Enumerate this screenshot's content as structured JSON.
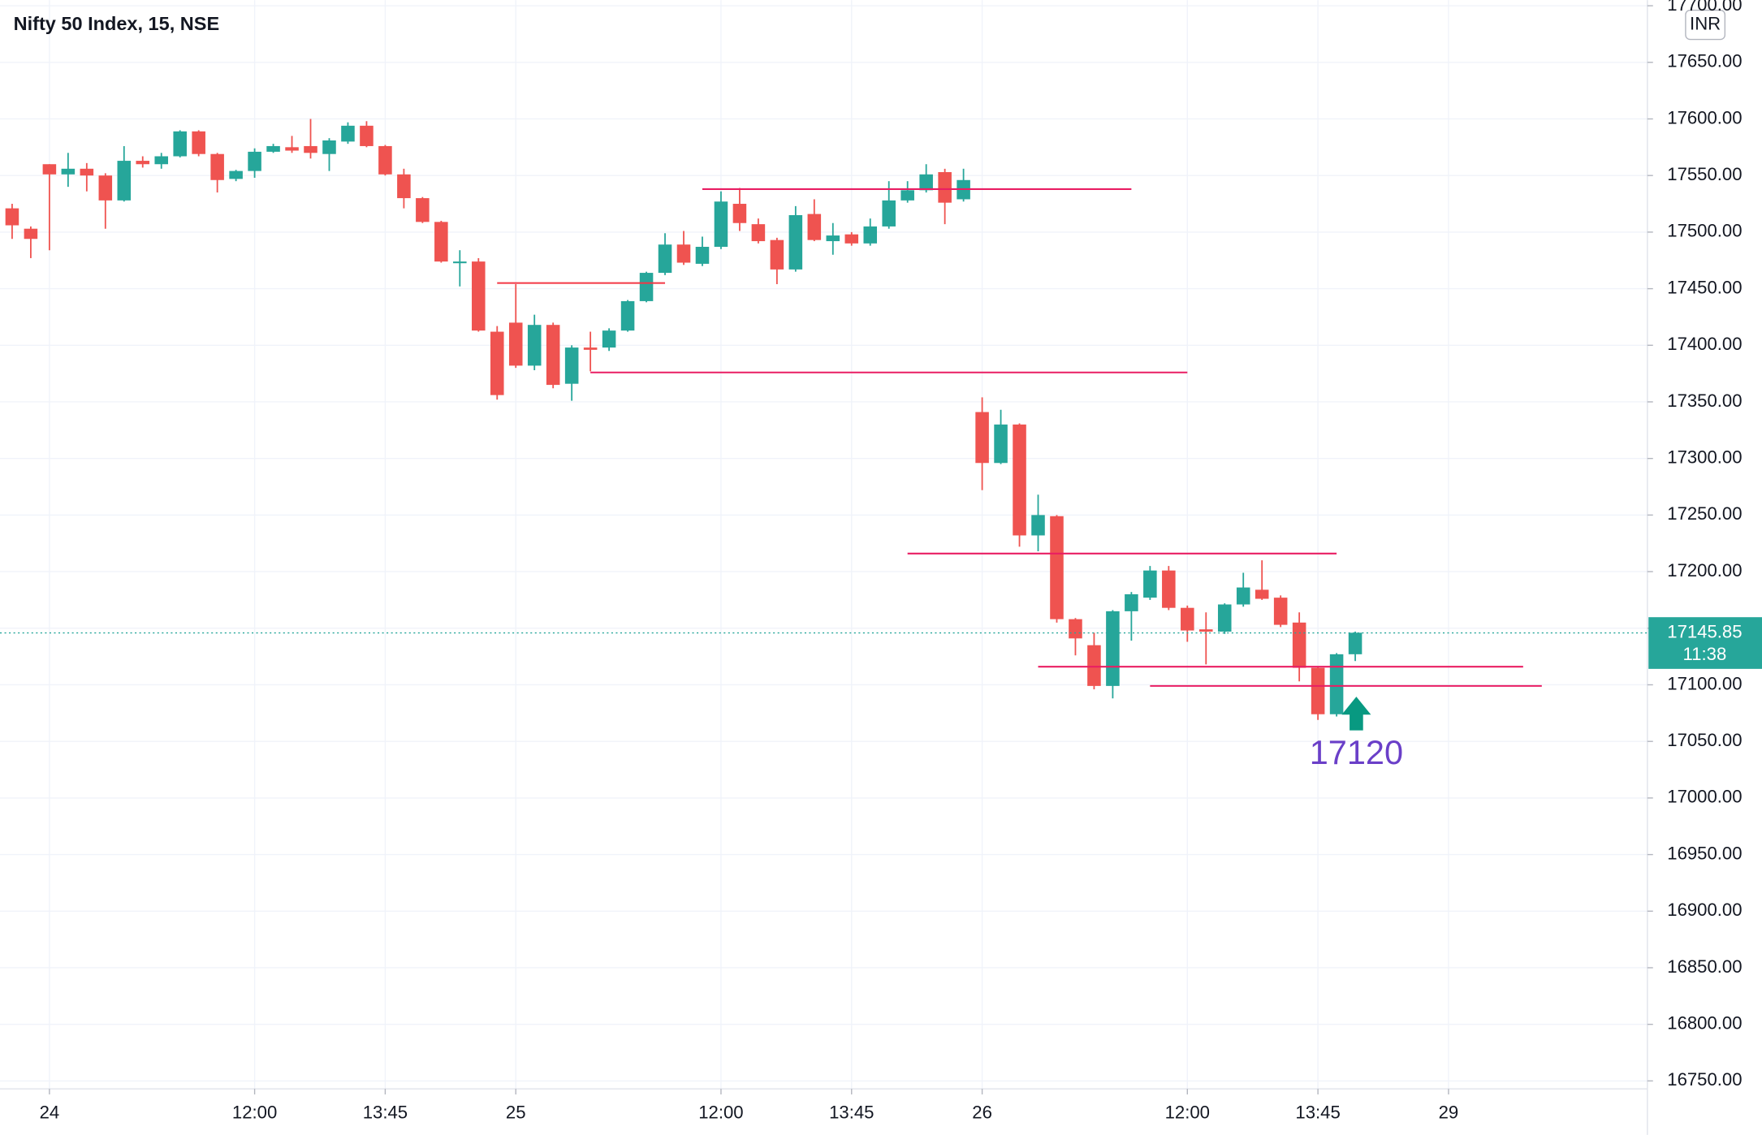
{
  "chart_data": {
    "type": "candlestick",
    "title": "Nifty 50 Index, 15, NSE",
    "currency": "INR",
    "up_color": "#26a69a",
    "down_color": "#ef5350",
    "x": [
      -2,
      -1,
      0,
      1,
      2,
      3,
      4,
      5,
      6,
      7,
      8,
      9,
      10,
      11,
      12,
      13,
      14,
      15,
      16,
      17,
      18,
      19,
      20,
      21,
      22,
      23,
      24,
      25,
      26,
      27,
      28,
      29,
      30,
      31,
      32,
      33,
      34,
      35,
      36,
      37,
      38,
      39,
      40,
      41,
      42,
      43,
      44,
      45,
      46,
      47,
      48,
      49,
      50,
      51,
      52,
      53,
      54,
      55,
      56,
      57,
      58,
      59,
      60,
      61,
      62,
      63,
      64,
      65,
      66,
      67,
      68,
      69,
      70
    ],
    "open": [
      17521,
      17503,
      17560,
      17551,
      17556,
      17550,
      17528,
      17563,
      17560,
      17567,
      17589,
      17569,
      17547,
      17554,
      17571,
      17575,
      17576,
      17569,
      17580,
      17594,
      17576,
      17551,
      17530,
      17509,
      17473,
      17474,
      17412,
      17420,
      17382,
      17418,
      17366,
      17398,
      17398,
      17413,
      17439,
      17464,
      17489,
      17472,
      17487,
      17525,
      17507,
      17493,
      17467,
      17516,
      17492,
      17498,
      17490,
      17505,
      17528,
      17537,
      17553,
      17529,
      17341,
      17296,
      17330,
      17232,
      17249,
      17158,
      17135,
      17099,
      17165,
      17177,
      17201,
      17168,
      17149,
      17147,
      17171,
      17184,
      17177,
      17155,
      17115,
      17074,
      17127
    ],
    "high": [
      17525,
      17505,
      17560,
      17570,
      17561,
      17552,
      17576,
      17567,
      17570,
      17590,
      17590,
      17570,
      17555,
      17574,
      17578,
      17585,
      17600,
      17583,
      17597,
      17598,
      17577,
      17556,
      17531,
      17510,
      17484,
      17477,
      17417,
      17454,
      17427,
      17420,
      17400,
      17412,
      17415,
      17440,
      17465,
      17499,
      17501,
      17496,
      17536,
      17539,
      17512,
      17495,
      17523,
      17529,
      17508,
      17500,
      17512,
      17545,
      17545,
      17560,
      17556,
      17556,
      17354,
      17343,
      17331,
      17268,
      17250,
      17159,
      17146,
      17166,
      17182,
      17205,
      17205,
      17170,
      17164,
      17172,
      17199,
      17210,
      17179,
      17164,
      17116,
      17128,
      17147
    ],
    "low": [
      17494,
      17477,
      17484,
      17540,
      17536,
      17503,
      17527,
      17557,
      17556,
      17566,
      17567,
      17535,
      17545,
      17548,
      17570,
      17570,
      17565,
      17554,
      17578,
      17575,
      17550,
      17521,
      17508,
      17473,
      17452,
      17412,
      17352,
      17380,
      17378,
      17362,
      17351,
      17377,
      17395,
      17412,
      17438,
      17462,
      17471,
      17470,
      17485,
      17501,
      17490,
      17454,
      17465,
      17492,
      17480,
      17488,
      17488,
      17503,
      17526,
      17535,
      17507,
      17527,
      17272,
      17295,
      17222,
      17218,
      17155,
      17126,
      17096,
      17088,
      17139,
      17175,
      17166,
      17138,
      17118,
      17145,
      17169,
      17175,
      17151,
      17103,
      17069,
      17072,
      17121
    ],
    "close": [
      17506,
      17494,
      17551,
      17556,
      17550,
      17528,
      17563,
      17560,
      17567,
      17589,
      17569,
      17546,
      17554,
      17571,
      17576,
      17572,
      17570,
      17581,
      17594,
      17576,
      17551,
      17530,
      17509,
      17474,
      17474,
      17413,
      17356,
      17382,
      17418,
      17365,
      17398,
      17396,
      17413,
      17439,
      17464,
      17489,
      17473,
      17487,
      17527,
      17508,
      17492,
      17467,
      17515,
      17493,
      17497,
      17490,
      17505,
      17528,
      17537,
      17551,
      17526,
      17546,
      17296,
      17330,
      17232,
      17250,
      17158,
      17141,
      17099,
      17165,
      17180,
      17201,
      17168,
      17148,
      17147,
      17171,
      17186,
      17176,
      17153,
      17115,
      17074,
      17127,
      17146
    ],
    "xlim": [
      -2.65,
      85.66
    ],
    "xticks": [
      {
        "value": 0,
        "label": "24"
      },
      {
        "value": 11,
        "label": "12:00"
      },
      {
        "value": 18,
        "label": "13:45"
      },
      {
        "value": 25,
        "label": "25"
      },
      {
        "value": 36,
        "label": "12:00"
      },
      {
        "value": 43,
        "label": "13:45"
      },
      {
        "value": 50,
        "label": "26"
      },
      {
        "value": 61,
        "label": "12:00"
      },
      {
        "value": 68,
        "label": "13:45"
      },
      {
        "value": 75,
        "label": "29"
      }
    ],
    "ylim": [
      16743,
      17705
    ],
    "yticks": [
      {
        "value": 16750,
        "label": "16750.00"
      },
      {
        "value": 16800,
        "label": "16800.00"
      },
      {
        "value": 16850,
        "label": "16850.00"
      },
      {
        "value": 16900,
        "label": "16900.00"
      },
      {
        "value": 16950,
        "label": "16950.00"
      },
      {
        "value": 17000,
        "label": "17000.00"
      },
      {
        "value": 17050,
        "label": "17050.00"
      },
      {
        "value": 17100,
        "label": "17100.00"
      },
      {
        "value": 17150,
        "label": "17150.00"
      },
      {
        "value": 17200,
        "label": "17200.00"
      },
      {
        "value": 17250,
        "label": "17250.00"
      },
      {
        "value": 17300,
        "label": "17300.00"
      },
      {
        "value": 17350,
        "label": "17350.00"
      },
      {
        "value": 17400,
        "label": "17400.00"
      },
      {
        "value": 17450,
        "label": "17450.00"
      },
      {
        "value": 17500,
        "label": "17500.00"
      },
      {
        "value": 17550,
        "label": "17550.00"
      },
      {
        "value": 17600,
        "label": "17600.00"
      },
      {
        "value": 17650,
        "label": "17650.00"
      },
      {
        "value": 17700,
        "label": "17700.00"
      }
    ],
    "grid": true,
    "last_price": {
      "value": 17145.85,
      "time": "11:38",
      "color": "#26a69a"
    },
    "levels": [
      {
        "value": 17538,
        "x": [
          35,
          58
        ],
        "color": "#e91e63"
      },
      {
        "value": 17455,
        "x": [
          24,
          33
        ],
        "color": "#f23645"
      },
      {
        "value": 17376,
        "x": [
          29,
          61
        ],
        "color": "#e91e63"
      },
      {
        "value": 17216,
        "x": [
          46,
          69
        ],
        "color": "#e91e63"
      },
      {
        "value": 17116,
        "x": [
          53,
          79
        ],
        "color": "#e91e63"
      },
      {
        "value": 17099,
        "x": [
          59,
          80
        ],
        "color": "#e91e63"
      }
    ],
    "annotation": {
      "text": "17120",
      "color": "#6a3fc8"
    }
  }
}
